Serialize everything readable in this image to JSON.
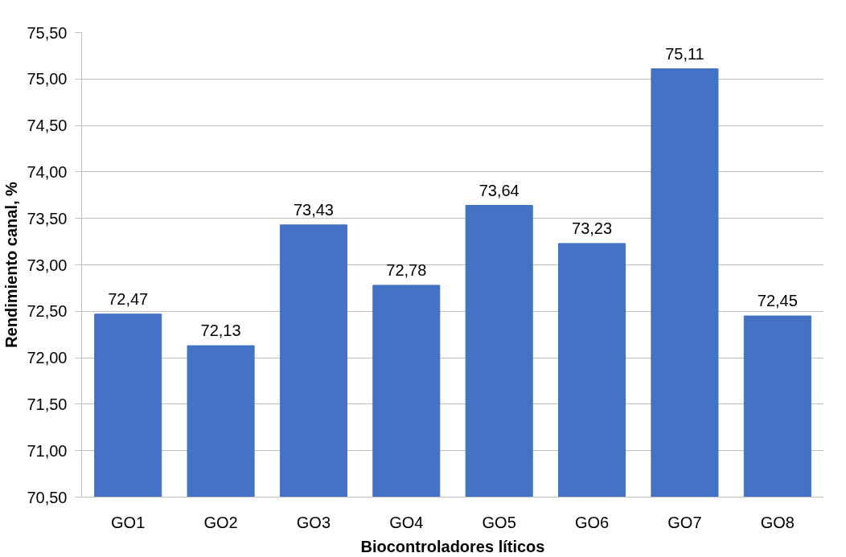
{
  "chart_data": {
    "type": "bar",
    "xlabel": "Biocontroladores líticos",
    "ylabel": "Rendimiento canal, %",
    "categories": [
      "GO1",
      "GO2",
      "GO3",
      "GO4",
      "GO5",
      "GO6",
      "GO7",
      "GO8"
    ],
    "values": [
      72.47,
      72.13,
      73.43,
      72.78,
      73.64,
      73.23,
      75.11,
      72.45
    ],
    "value_labels": [
      "72,47",
      "72,13",
      "73,43",
      "72,78",
      "73,64",
      "73,23",
      "75,11",
      "72,45"
    ],
    "color": "#4472c4",
    "ylim": [
      70.5,
      75.5
    ],
    "yticks": [
      {
        "value": 70.5,
        "label": "70,50"
      },
      {
        "value": 71.0,
        "label": "71,00"
      },
      {
        "value": 71.5,
        "label": "71,50"
      },
      {
        "value": 72.0,
        "label": "72,00"
      },
      {
        "value": 72.5,
        "label": "72,50"
      },
      {
        "value": 73.0,
        "label": "73,00"
      },
      {
        "value": 73.5,
        "label": "73,50"
      },
      {
        "value": 74.0,
        "label": "74,00"
      },
      {
        "value": 74.5,
        "label": "74,50"
      },
      {
        "value": 75.0,
        "label": "75,00"
      },
      {
        "value": 75.5,
        "label": "75,50"
      }
    ],
    "grid": "y"
  }
}
